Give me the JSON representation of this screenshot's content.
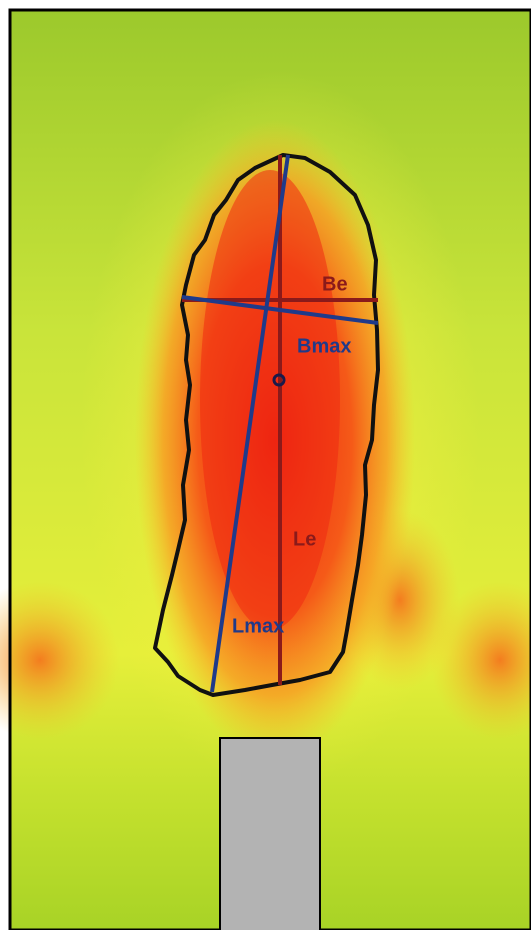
{
  "annotations": [
    {
      "text": "Be",
      "color": "#8b1a1a"
    },
    {
      "text": "Bmax",
      "color": "#1f3a8a"
    },
    {
      "text": "Le",
      "color": "#8b1a1a"
    },
    {
      "text": "Lmax",
      "color": "#1f3a8a"
    }
  ]
}
